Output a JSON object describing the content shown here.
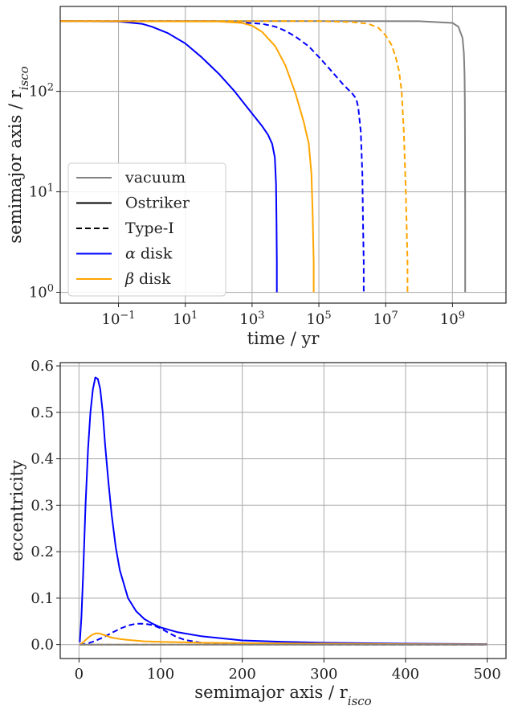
{
  "colors": {
    "vacuum": "#808080",
    "ostriker": "#000000",
    "alpha_disk": "#0000ff",
    "beta_disk": "#ffa500"
  },
  "chart_data": [
    {
      "type": "line",
      "xlabel": "time / yr",
      "ylabel_prefix": "semimajor axis / r",
      "ylabel_sub": "isco",
      "xscale": "log",
      "yscale": "log",
      "xlim": [
        0.0018,
        40000000000
      ],
      "ylim": [
        0.78,
        700
      ],
      "xticks": [
        {
          "value": 0.1,
          "base": "10",
          "exp": "−1"
        },
        {
          "value": 10,
          "base": "10",
          "exp": "1"
        },
        {
          "value": 1000,
          "base": "10",
          "exp": "3"
        },
        {
          "value": 100000,
          "base": "10",
          "exp": "5"
        },
        {
          "value": 10000000,
          "base": "10",
          "exp": "7"
        },
        {
          "value": 1000000000,
          "base": "10",
          "exp": "9"
        }
      ],
      "yticks": [
        {
          "value": 1,
          "base": "10",
          "exp": "0"
        },
        {
          "value": 10,
          "base": "10",
          "exp": "1"
        },
        {
          "value": 100,
          "base": "10",
          "exp": "2"
        }
      ],
      "grid": true,
      "legend_position": "lower-left",
      "legend": [
        {
          "label": "vacuum",
          "color_key": "vacuum",
          "dash": "solid"
        },
        {
          "label": "Ostriker",
          "color_key": "ostriker",
          "dash": "solid"
        },
        {
          "label": "Type-I",
          "color_key": "ostriker",
          "dash": "dashed"
        },
        {
          "label_prefix": "α",
          "label": " disk",
          "color_key": "alpha_disk",
          "dash": "solid"
        },
        {
          "label_prefix": "β",
          "label": " disk",
          "color_key": "beta_disk",
          "dash": "solid"
        }
      ],
      "series": [
        {
          "color_key": "vacuum",
          "dash": "solid",
          "x": [
            0.0018,
            1000000.0,
            100000000.0,
            1000000000.0,
            1500000000.0,
            2000000000.0,
            2200000000.0,
            2300000000.0,
            2350000000.0,
            2380000000.0,
            2400000000.0,
            2400000000.0
          ],
          "y": [
            500,
            500,
            499,
            480,
            440,
            340,
            240,
            150,
            80,
            30,
            5,
            1
          ]
        },
        {
          "color_key": "alpha_disk",
          "dash": "solid",
          "x": [
            0.0018,
            0.1,
            0.5,
            1,
            3,
            10,
            30,
            100,
            300,
            1000,
            2000,
            3000,
            4000,
            4800,
            5200,
            5400,
            5500,
            5500
          ],
          "y": [
            500,
            495,
            470,
            440,
            380,
            300,
            220,
            150,
            100,
            60,
            45,
            37,
            30,
            22,
            12,
            5,
            2,
            1
          ]
        },
        {
          "color_key": "alpha_disk",
          "dash": "dashed",
          "x": [
            0.0018,
            100,
            2000,
            5000,
            10000,
            20000,
            50000,
            100000,
            200000,
            500000,
            1000000,
            1300000,
            1500000,
            1800000,
            2000000,
            2100000,
            2200000,
            2200000
          ],
          "y": [
            500,
            500,
            470,
            440,
            400,
            350,
            280,
            220,
            170,
            120,
            95,
            85,
            70,
            40,
            15,
            5,
            2,
            1
          ]
        },
        {
          "color_key": "beta_disk",
          "dash": "solid",
          "x": [
            0.0018,
            100,
            500,
            1000,
            2000,
            5000,
            10000,
            20000,
            35000,
            50000,
            60000,
            65000,
            70000,
            70000
          ],
          "y": [
            500,
            495,
            480,
            450,
            390,
            280,
            180,
            95,
            50,
            30,
            15,
            6,
            2,
            1
          ]
        },
        {
          "color_key": "beta_disk",
          "dash": "dashed",
          "x": [
            0.0018,
            100000,
            1000000,
            3000000,
            6000000,
            10000000,
            15000000,
            20000000,
            25000000,
            30000000,
            35000000,
            40000000,
            45000000,
            45000000
          ],
          "y": [
            500,
            500,
            490,
            470,
            430,
            360,
            290,
            220,
            160,
            100,
            40,
            10,
            2,
            1
          ]
        }
      ]
    },
    {
      "type": "line",
      "xlabel_prefix": "semimajor axis / r",
      "xlabel_sub": "isco",
      "ylabel": "eccentricity",
      "xlim": [
        -23,
        523
      ],
      "ylim": [
        -0.03,
        0.607
      ],
      "xticks": [
        0,
        100,
        200,
        300,
        400,
        500
      ],
      "yticks": [
        0.0,
        0.1,
        0.2,
        0.3,
        0.4,
        0.5,
        0.6
      ],
      "xtick_labels": [
        "0",
        "100",
        "200",
        "300",
        "400",
        "500"
      ],
      "ytick_labels": [
        "0.0",
        "0.1",
        "0.2",
        "0.3",
        "0.4",
        "0.5",
        "0.6"
      ],
      "grid": true,
      "series": [
        {
          "color_key": "alpha_disk",
          "dash": "solid",
          "x": [
            1,
            3,
            5,
            8,
            11,
            14,
            17,
            20,
            23,
            26,
            29,
            32,
            36,
            40,
            45,
            50,
            60,
            70,
            80,
            90,
            100,
            120,
            150,
            200,
            250,
            300,
            400,
            500
          ],
          "y": [
            0.005,
            0.06,
            0.15,
            0.3,
            0.42,
            0.5,
            0.55,
            0.575,
            0.572,
            0.55,
            0.5,
            0.43,
            0.35,
            0.28,
            0.21,
            0.16,
            0.1,
            0.072,
            0.055,
            0.045,
            0.037,
            0.027,
            0.018,
            0.009,
            0.006,
            0.004,
            0.002,
            0.001
          ]
        },
        {
          "color_key": "alpha_disk",
          "dash": "dashed",
          "x": [
            1,
            10,
            20,
            30,
            40,
            50,
            60,
            70,
            80,
            90,
            100,
            110,
            120,
            130,
            150,
            200,
            300,
            500
          ],
          "y": [
            0,
            0.002,
            0.008,
            0.016,
            0.025,
            0.034,
            0.041,
            0.045,
            0.045,
            0.042,
            0.035,
            0.025,
            0.016,
            0.01,
            0.004,
            0.001,
            0,
            0
          ]
        },
        {
          "color_key": "beta_disk",
          "dash": "solid",
          "x": [
            1,
            5,
            10,
            15,
            20,
            25,
            30,
            35,
            40,
            50,
            60,
            80,
            100,
            150,
            200,
            300,
            400,
            500
          ],
          "y": [
            0,
            0.005,
            0.013,
            0.02,
            0.024,
            0.024,
            0.021,
            0.018,
            0.015,
            0.012,
            0.01,
            0.007,
            0.006,
            0.004,
            0.003,
            0.002,
            0.001,
            0.0005
          ]
        },
        {
          "color_key": "beta_disk",
          "dash": "dashed",
          "x": [
            1,
            100,
            200,
            300,
            400,
            500
          ],
          "y": [
            0,
            0,
            0,
            0,
            0,
            0
          ]
        },
        {
          "color_key": "vacuum",
          "dash": "solid",
          "x": [
            1,
            500
          ],
          "y": [
            0,
            0
          ]
        }
      ]
    }
  ]
}
